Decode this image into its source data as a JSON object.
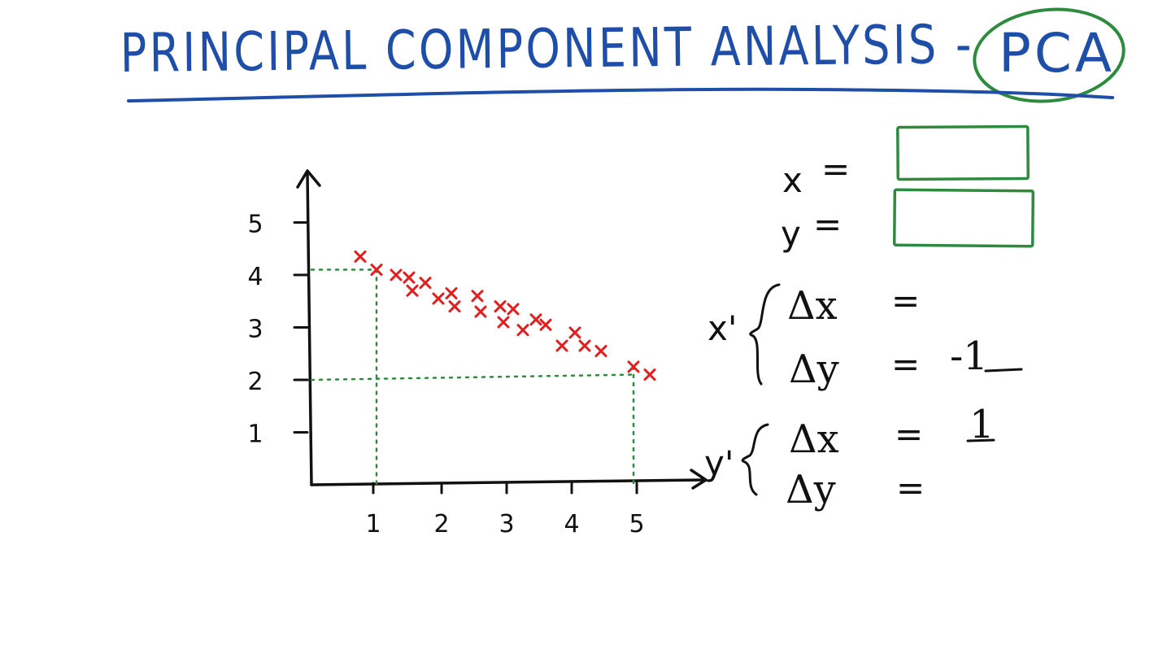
{
  "title": {
    "text": "PRINCIPAL COMPONENT ANALYSIS -",
    "acronym": "PCA",
    "color": "#1f4ea8",
    "circle_color": "#2e8b3e"
  },
  "colors": {
    "ink": "#111111",
    "marks": "#e02020",
    "guides": "#2e8b3e",
    "boxes": "#2e8b3e",
    "title": "#1f4ea8"
  },
  "chart_data": {
    "type": "scatter",
    "title": "",
    "xlabel": "",
    "ylabel": "",
    "xlim": [
      0,
      5.6
    ],
    "ylim": [
      0,
      5.5
    ],
    "x_ticks": [
      "1",
      "2",
      "3",
      "4",
      "5"
    ],
    "y_ticks": [
      "1",
      "2",
      "3",
      "4",
      "5"
    ],
    "grid": false,
    "points": [
      {
        "x": 0.75,
        "y": 4.35
      },
      {
        "x": 1.0,
        "y": 4.1
      },
      {
        "x": 1.3,
        "y": 4.0
      },
      {
        "x": 1.5,
        "y": 3.95
      },
      {
        "x": 1.55,
        "y": 3.7
      },
      {
        "x": 1.75,
        "y": 3.85
      },
      {
        "x": 1.95,
        "y": 3.55
      },
      {
        "x": 2.15,
        "y": 3.65
      },
      {
        "x": 2.2,
        "y": 3.4
      },
      {
        "x": 2.55,
        "y": 3.6
      },
      {
        "x": 2.6,
        "y": 3.3
      },
      {
        "x": 2.9,
        "y": 3.4
      },
      {
        "x": 2.95,
        "y": 3.1
      },
      {
        "x": 3.1,
        "y": 3.35
      },
      {
        "x": 3.25,
        "y": 2.95
      },
      {
        "x": 3.45,
        "y": 3.15
      },
      {
        "x": 3.6,
        "y": 3.05
      },
      {
        "x": 3.85,
        "y": 2.65
      },
      {
        "x": 4.05,
        "y": 2.9
      },
      {
        "x": 4.2,
        "y": 2.65
      },
      {
        "x": 4.45,
        "y": 2.55
      },
      {
        "x": 4.95,
        "y": 2.25
      },
      {
        "x": 5.2,
        "y": 2.1
      }
    ],
    "guides": [
      {
        "from": [
          0,
          4.1
        ],
        "to": [
          1.0,
          4.1
        ]
      },
      {
        "from": [
          1.0,
          4.1
        ],
        "to": [
          1.0,
          0
        ]
      },
      {
        "from": [
          0,
          2.0
        ],
        "to": [
          4.95,
          2.1
        ]
      },
      {
        "from": [
          4.95,
          2.25
        ],
        "to": [
          4.95,
          0
        ]
      }
    ]
  },
  "equations": {
    "x_label": "x",
    "y_label": "y",
    "equals": "=",
    "x_prime": {
      "label": "x'",
      "dx_label": "Δx",
      "dy_label": "Δy",
      "dx_value": "",
      "dy_value": "-1"
    },
    "y_prime": {
      "label": "y'",
      "dx_label": "Δx",
      "dy_label": "Δy",
      "dx_value": "1",
      "dy_value": ""
    }
  }
}
